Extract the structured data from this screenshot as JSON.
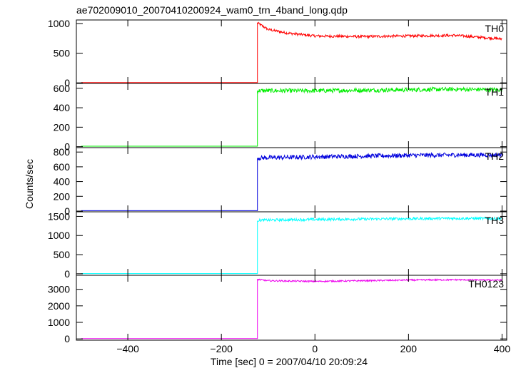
{
  "chart_data": {
    "type": "line",
    "title": "ae702009010_20070410200924_wam0_trn_4band_long.qdp",
    "xlabel": "Time [sec] 0 = 2007/04/10 20:09:24",
    "ylabel": "Counts/sec",
    "xlim": [
      -510,
      410
    ],
    "x_ticks": [
      -400,
      -200,
      0,
      200,
      400
    ],
    "x_tick_labels": [
      "−400",
      "−200",
      "0",
      "200",
      "400"
    ],
    "step_time": -123,
    "panels": [
      {
        "name": "TH0",
        "color": "#ff0000",
        "ylim": [
          -10,
          1060
        ],
        "yticks": [
          0,
          500,
          1000
        ],
        "pre_level": 5,
        "post": [
          [
            -123,
            1010
          ],
          [
            -100,
            900
          ],
          [
            -60,
            840
          ],
          [
            0,
            790
          ],
          [
            100,
            780
          ],
          [
            200,
            790
          ],
          [
            300,
            800
          ],
          [
            400,
            740
          ]
        ],
        "noise": 22
      },
      {
        "name": "TH1",
        "color": "#00ee00",
        "ylim": [
          -10,
          650
        ],
        "yticks": [
          0,
          200,
          400,
          600
        ],
        "pre_level": 5,
        "post": [
          [
            -123,
            575
          ],
          [
            0,
            575
          ],
          [
            100,
            580
          ],
          [
            200,
            585
          ],
          [
            300,
            590
          ],
          [
            400,
            585
          ]
        ],
        "noise": 22
      },
      {
        "name": "TH2",
        "color": "#0000dd",
        "ylim": [
          -10,
          860
        ],
        "yticks": [
          0,
          200,
          400,
          600,
          800
        ],
        "pre_level": 5,
        "post": [
          [
            -123,
            720
          ],
          [
            0,
            735
          ],
          [
            100,
            745
          ],
          [
            200,
            755
          ],
          [
            300,
            760
          ],
          [
            400,
            760
          ]
        ],
        "noise": 30
      },
      {
        "name": "TH3",
        "color": "#00ffff",
        "ylim": [
          -40,
          1620
        ],
        "yticks": [
          0,
          500,
          1000,
          1500
        ],
        "pre_level": 5,
        "post": [
          [
            -123,
            1400
          ],
          [
            0,
            1420
          ],
          [
            100,
            1430
          ],
          [
            200,
            1440
          ],
          [
            300,
            1450
          ],
          [
            400,
            1440
          ]
        ],
        "noise": 35
      },
      {
        "name": "TH0123",
        "color": "#ee00ee",
        "ylim": [
          -80,
          3850
        ],
        "yticks": [
          0,
          1000,
          2000,
          3000
        ],
        "pre_level": 20,
        "post": [
          [
            -123,
            3600
          ],
          [
            -100,
            3520
          ],
          [
            0,
            3480
          ],
          [
            100,
            3520
          ],
          [
            200,
            3560
          ],
          [
            300,
            3580
          ],
          [
            400,
            3560
          ]
        ],
        "noise": 45
      }
    ]
  }
}
